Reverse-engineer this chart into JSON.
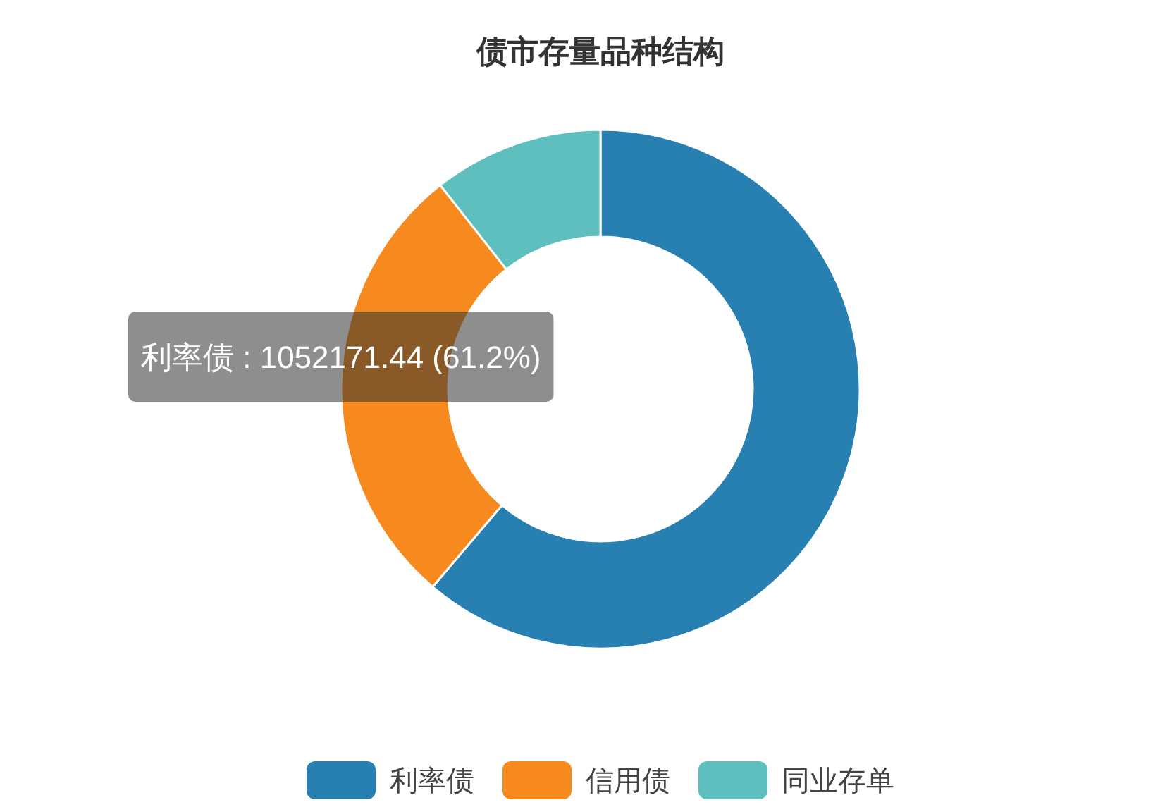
{
  "chart_data": {
    "type": "donut",
    "title": "债市存量品种结构",
    "categories": [
      "利率债",
      "信用债",
      "同业存单"
    ],
    "values": [
      61.2,
      28.2,
      10.6
    ],
    "colors": [
      "#2780b1",
      "#f68a1e",
      "#5fbfbf"
    ],
    "legend": "bottom",
    "annotations": [
      "利率债 : 1052171.44 (61.2%)"
    ]
  }
}
